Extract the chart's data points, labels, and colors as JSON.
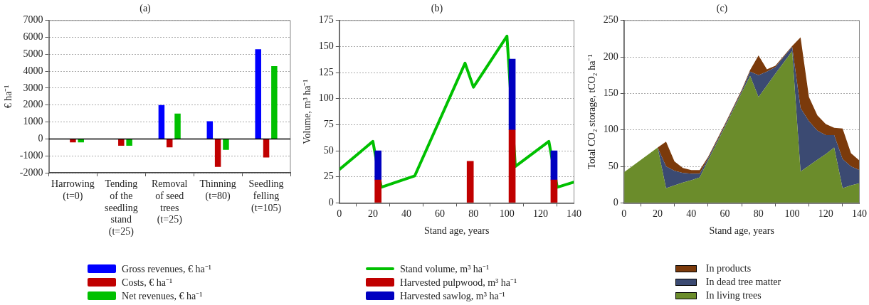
{
  "chart_data": [
    {
      "type": "bar",
      "title": "(a)",
      "ylabel": "€ ha⁻¹",
      "categories": [
        "Harrowing\n(t=0)",
        "Tending\nof the\nseedling\nstand\n(t=25)",
        "Removal\nof seed\ntrees\n(t=25)",
        "Thinning\n(t=80)",
        "Seedling\nfelling\n(t=105)"
      ],
      "series": [
        {
          "name": "Gross revenues, € ha⁻¹",
          "color": "#0000ff",
          "values": [
            null,
            null,
            2000,
            1050,
            5300
          ]
        },
        {
          "name": "Costs, € ha⁻¹",
          "color": "#c00000",
          "values": [
            -200,
            -400,
            -500,
            -1650,
            -1100
          ]
        },
        {
          "name": "Net revenues, € ha⁻¹",
          "color": "#00c000",
          "values": [
            -200,
            -400,
            1500,
            -650,
            4300
          ]
        }
      ],
      "ylim": [
        -2000,
        7000
      ],
      "yticks": [
        -2000,
        -1000,
        0,
        1000,
        2000,
        3000,
        4000,
        5000,
        6000,
        7000
      ],
      "grid": "y",
      "legend": "bottom"
    },
    {
      "type": "bar",
      "stacked": true,
      "title": "(b)",
      "xlabel": "Stand age, years",
      "ylabel": "Volume, m³ ha⁻¹",
      "series": [
        {
          "name": "Stand volume, m³ ha⁻¹",
          "type": "line",
          "color": "#00c000",
          "x": [
            0,
            20,
            25,
            45,
            75,
            80,
            100,
            105,
            125,
            130,
            140
          ],
          "values": [
            32,
            59,
            15,
            26,
            134,
            111,
            160,
            35,
            59,
            15,
            20
          ]
        },
        {
          "name": "Harvested pulpwood, m³ ha⁻¹",
          "color": "#c00000",
          "x": [
            25,
            80,
            105,
            130
          ],
          "values": [
            22,
            40,
            70,
            22
          ]
        },
        {
          "name": "Harvested sawlog, m³ ha⁻¹",
          "color": "#0000c0",
          "x": [
            25,
            80,
            105,
            130
          ],
          "values": [
            28,
            null,
            68,
            28
          ]
        }
      ],
      "xlim": [
        0,
        140
      ],
      "xticks": [
        0,
        20,
        40,
        60,
        80,
        100,
        120,
        140
      ],
      "ylim": [
        0,
        175
      ],
      "yticks": [
        0,
        25,
        50,
        75,
        100,
        125,
        150,
        175
      ],
      "grid": "y",
      "legend": "bottom"
    },
    {
      "type": "area",
      "stacked": true,
      "title": "(c)",
      "xlabel": "Stand age, years",
      "ylabel": "Total CO₂ storage, tCO₂ ha⁻¹",
      "x": [
        0,
        20,
        25,
        30,
        35,
        40,
        45,
        50,
        60,
        70,
        75,
        80,
        85,
        90,
        100,
        105,
        110,
        115,
        120,
        125,
        130,
        135,
        140
      ],
      "series": [
        {
          "name": "In living trees",
          "color": "#6b8c2b",
          "values": [
            42,
            76,
            20,
            24,
            28,
            31,
            35,
            58,
            104,
            151,
            174,
            145,
            161,
            177,
            208,
            43,
            51,
            59,
            67,
            76,
            20,
            24,
            27
          ]
        },
        {
          "name": "In dead tree matter",
          "color": "#3b4a72",
          "values": [
            0,
            0,
            30,
            20,
            13,
            9,
            5,
            3,
            2,
            2,
            6,
            30,
            19,
            9,
            6,
            87,
            61,
            40,
            26,
            17,
            40,
            26,
            18
          ]
        },
        {
          "name": "In products",
          "color": "#7b3a0b",
          "values": [
            0,
            0,
            34,
            13,
            7,
            5,
            5,
            2,
            2,
            2,
            2,
            27,
            3,
            2,
            1,
            97,
            33,
            21,
            15,
            10,
            42,
            18,
            13
          ]
        }
      ],
      "xlim": [
        0,
        140
      ],
      "xticks": [
        0,
        20,
        40,
        60,
        80,
        100,
        120,
        140
      ],
      "ylim": [
        0,
        250
      ],
      "yticks": [
        0,
        50,
        100,
        150,
        200,
        250
      ],
      "grid": "y",
      "legend": "bottom"
    }
  ]
}
